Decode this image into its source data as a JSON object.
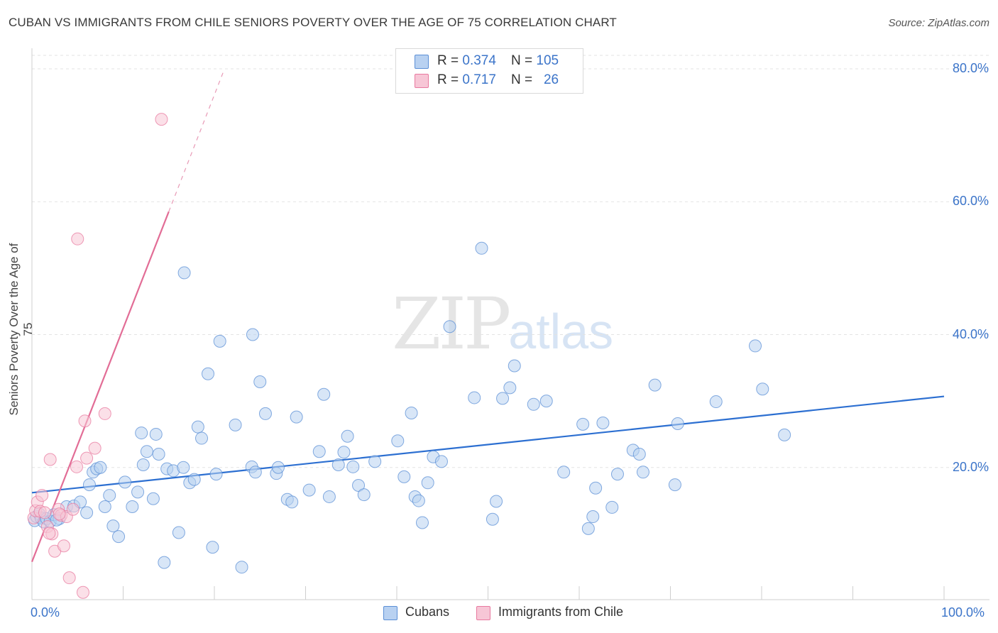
{
  "title": "CUBAN VS IMMIGRANTS FROM CHILE SENIORS POVERTY OVER THE AGE OF 75 CORRELATION CHART",
  "source": "Source: ZipAtlas.com",
  "watermark": {
    "zip": "ZIP",
    "atlas": "atlas"
  },
  "legend_top": {
    "rows": [
      {
        "r_label": "R = ",
        "r_value": "0.374",
        "n_label": "N = ",
        "n_value": "105",
        "color": "#a9c8ef"
      },
      {
        "r_label": "R = ",
        "r_value": "0.717",
        "n_label": "N = ",
        "n_value": "26",
        "color": "#f6bccd"
      }
    ]
  },
  "chart_data": {
    "type": "scatter",
    "title": "CUBAN VS IMMIGRANTS FROM CHILE SENIORS POVERTY OVER THE AGE OF 75 CORRELATION CHART",
    "xlabel": "",
    "ylabel": "Seniors Poverty Over the Age of 75",
    "xlim": [
      0,
      100
    ],
    "ylim": [
      0,
      85
    ],
    "x_tick_labels": [
      "0.0%",
      "100.0%"
    ],
    "y_ticks": [
      20,
      40,
      60,
      80
    ],
    "y_tick_labels": [
      "20.0%",
      "40.0%",
      "60.0%",
      "80.0%"
    ],
    "grid": true,
    "legend_position": "bottom",
    "series": [
      {
        "name": "Cubans",
        "color": "#5b8fd6",
        "fill": "#b8d1f1",
        "trend": {
          "x0": 0,
          "y0": 16.2,
          "x1": 100,
          "y1": 30.7
        },
        "points": [
          [
            0.3,
            12.0
          ],
          [
            0.5,
            12.6
          ],
          [
            0.8,
            13.0
          ],
          [
            1.0,
            12.4
          ],
          [
            1.3,
            11.8
          ],
          [
            1.6,
            12.3
          ],
          [
            2.0,
            11.9
          ],
          [
            2.4,
            12.9
          ],
          [
            3.0,
            12.3
          ],
          [
            3.8,
            14.1
          ],
          [
            4.6,
            14.2
          ],
          [
            5.3,
            14.8
          ],
          [
            6.0,
            13.2
          ],
          [
            6.3,
            17.4
          ],
          [
            6.7,
            19.3
          ],
          [
            7.1,
            19.8
          ],
          [
            7.5,
            20.0
          ],
          [
            8.0,
            14.1
          ],
          [
            8.5,
            15.8
          ],
          [
            8.9,
            11.2
          ],
          [
            9.5,
            9.6
          ],
          [
            10.2,
            17.8
          ],
          [
            11.0,
            14.1
          ],
          [
            11.6,
            16.3
          ],
          [
            12.2,
            20.4
          ],
          [
            12.6,
            22.4
          ],
          [
            13.3,
            15.3
          ],
          [
            13.9,
            22.0
          ],
          [
            14.5,
            5.7
          ],
          [
            14.8,
            19.8
          ],
          [
            15.5,
            19.5
          ],
          [
            16.1,
            10.2
          ],
          [
            16.6,
            20.0
          ],
          [
            17.3,
            17.7
          ],
          [
            17.8,
            18.2
          ],
          [
            18.2,
            26.1
          ],
          [
            18.6,
            24.4
          ],
          [
            19.3,
            34.1
          ],
          [
            19.8,
            8.0
          ],
          [
            20.2,
            19.0
          ],
          [
            20.6,
            39.0
          ],
          [
            22.3,
            26.4
          ],
          [
            23.0,
            5.0
          ],
          [
            24.1,
            20.1
          ],
          [
            24.5,
            19.3
          ],
          [
            25.0,
            32.9
          ],
          [
            25.6,
            28.1
          ],
          [
            26.8,
            19.1
          ],
          [
            27.0,
            20.0
          ],
          [
            28.0,
            15.2
          ],
          [
            28.5,
            14.8
          ],
          [
            29.0,
            27.6
          ],
          [
            30.4,
            16.6
          ],
          [
            31.5,
            22.4
          ],
          [
            32.0,
            31.0
          ],
          [
            32.6,
            15.6
          ],
          [
            33.6,
            20.4
          ],
          [
            34.2,
            22.3
          ],
          [
            34.6,
            24.7
          ],
          [
            35.2,
            20.1
          ],
          [
            35.8,
            17.3
          ],
          [
            36.4,
            15.9
          ],
          [
            37.6,
            20.9
          ],
          [
            40.1,
            24.0
          ],
          [
            40.8,
            18.6
          ],
          [
            41.6,
            28.2
          ],
          [
            42.0,
            15.6
          ],
          [
            42.4,
            15.0
          ],
          [
            42.8,
            11.7
          ],
          [
            43.4,
            17.7
          ],
          [
            44.0,
            21.6
          ],
          [
            44.9,
            20.9
          ],
          [
            45.8,
            41.2
          ],
          [
            48.5,
            30.5
          ],
          [
            49.3,
            53.0
          ],
          [
            50.5,
            12.2
          ],
          [
            50.9,
            14.9
          ],
          [
            51.6,
            30.4
          ],
          [
            52.4,
            32.0
          ],
          [
            52.9,
            35.3
          ],
          [
            55.0,
            29.5
          ],
          [
            56.4,
            30.0
          ],
          [
            58.3,
            19.3
          ],
          [
            60.4,
            26.5
          ],
          [
            61.0,
            10.8
          ],
          [
            61.5,
            12.6
          ],
          [
            61.8,
            16.9
          ],
          [
            62.6,
            26.7
          ],
          [
            63.6,
            14.0
          ],
          [
            64.2,
            19.0
          ],
          [
            65.9,
            22.6
          ],
          [
            66.6,
            22.0
          ],
          [
            67.0,
            19.3
          ],
          [
            68.3,
            32.4
          ],
          [
            70.5,
            17.4
          ],
          [
            70.8,
            26.6
          ],
          [
            75.0,
            29.9
          ],
          [
            79.3,
            38.3
          ],
          [
            80.1,
            31.8
          ],
          [
            82.5,
            24.9
          ],
          [
            16.7,
            49.3
          ],
          [
            24.2,
            40.0
          ],
          [
            12.0,
            25.2
          ],
          [
            13.6,
            25.0
          ],
          [
            2.7,
            12.1
          ]
        ]
      },
      {
        "name": "Immigrants from Chile",
        "color": "#e8799f",
        "fill": "#f7c6d6",
        "trend": {
          "x0": 0,
          "y0": 5.8,
          "x1": 15,
          "y1": 58.5
        },
        "trend_dashed": {
          "x0": 15,
          "y0": 58.5,
          "x1": 21,
          "y1": 79.6
        },
        "points": [
          [
            0.2,
            12.4
          ],
          [
            0.4,
            13.5
          ],
          [
            0.6,
            14.8
          ],
          [
            0.9,
            13.4
          ],
          [
            1.1,
            15.8
          ],
          [
            1.4,
            13.2
          ],
          [
            1.7,
            11.1
          ],
          [
            2.0,
            21.2
          ],
          [
            2.2,
            10.0
          ],
          [
            2.5,
            7.4
          ],
          [
            2.9,
            13.7
          ],
          [
            3.2,
            12.8
          ],
          [
            3.5,
            8.2
          ],
          [
            3.8,
            12.6
          ],
          [
            4.1,
            3.4
          ],
          [
            4.5,
            13.7
          ],
          [
            4.9,
            20.1
          ],
          [
            5.0,
            54.4
          ],
          [
            5.6,
            1.2
          ],
          [
            5.8,
            27.0
          ],
          [
            6.0,
            21.4
          ],
          [
            6.9,
            22.9
          ],
          [
            8.0,
            28.1
          ],
          [
            14.2,
            72.4
          ],
          [
            3.0,
            13.0
          ],
          [
            1.9,
            10.1
          ]
        ]
      }
    ]
  },
  "bottom_legend": [
    {
      "label": "Cubans",
      "color": "#b8d1f1",
      "border": "#5b8fd6"
    },
    {
      "label": "Immigrants from Chile",
      "color": "#f7c6d6",
      "border": "#e8799f"
    }
  ]
}
